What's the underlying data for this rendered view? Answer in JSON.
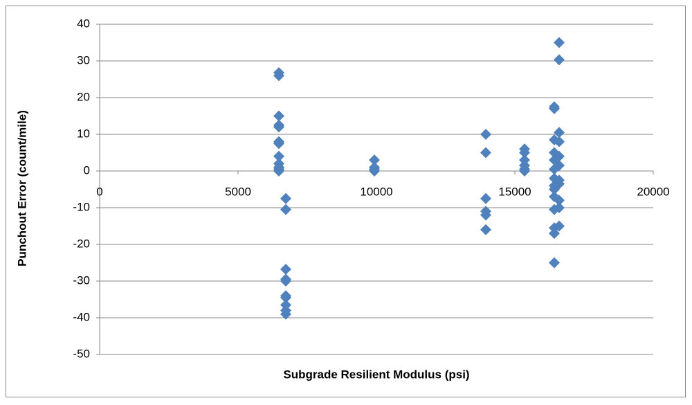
{
  "chart_data": {
    "type": "scatter",
    "x_label": "Subgrade Resilient Modulus (psi)",
    "y_label": "Punchout Error (count/mile)",
    "color": "#4f81bd",
    "grid": true,
    "xlim": [
      0,
      20000
    ],
    "xticks": [
      0,
      5000,
      10000,
      15000,
      20000
    ],
    "ylim": [
      -50,
      40
    ],
    "yticks": [
      -50,
      -40,
      -30,
      -20,
      -10,
      0,
      10,
      20,
      30,
      40
    ],
    "x": [
      6475,
      6475,
      6475,
      6475,
      6475,
      6475,
      6475,
      6475,
      6475,
      6475,
      6475,
      6475,
      6725,
      6725,
      6725,
      6725,
      6725,
      6725,
      6725,
      6725,
      6725,
      6725,
      9925,
      9925,
      9925,
      9925,
      13950,
      13950,
      13950,
      13950,
      13950,
      13950,
      15350,
      15350,
      15350,
      15350,
      15350,
      15350,
      16425,
      16425,
      16425,
      16425,
      16425,
      16425,
      16425,
      16425,
      16425,
      16425,
      16425,
      16425,
      16425,
      16425,
      16600,
      16600,
      16600,
      16600,
      16600,
      16600,
      16600,
      16600,
      16600,
      16600,
      16600
    ],
    "values": [
      26.8,
      26,
      15,
      12.5,
      12,
      8,
      7.5,
      4,
      2,
      1,
      0.5,
      0,
      -7.5,
      -10.5,
      -26.8,
      -29.5,
      -30,
      -34,
      -34.5,
      -36.5,
      -38,
      -39,
      3,
      1,
      0.5,
      0,
      10,
      5,
      -7.5,
      -11,
      -12,
      -16,
      6,
      5,
      3,
      1.5,
      0.5,
      0,
      17.5,
      17,
      8.5,
      5,
      3,
      0.5,
      -2,
      -4,
      -5,
      -7,
      -10.5,
      -15.5,
      -17,
      -25,
      35,
      30.3,
      10.5,
      8,
      4,
      1.5,
      -2.5,
      -3.5,
      -8,
      -10,
      -15
    ]
  }
}
